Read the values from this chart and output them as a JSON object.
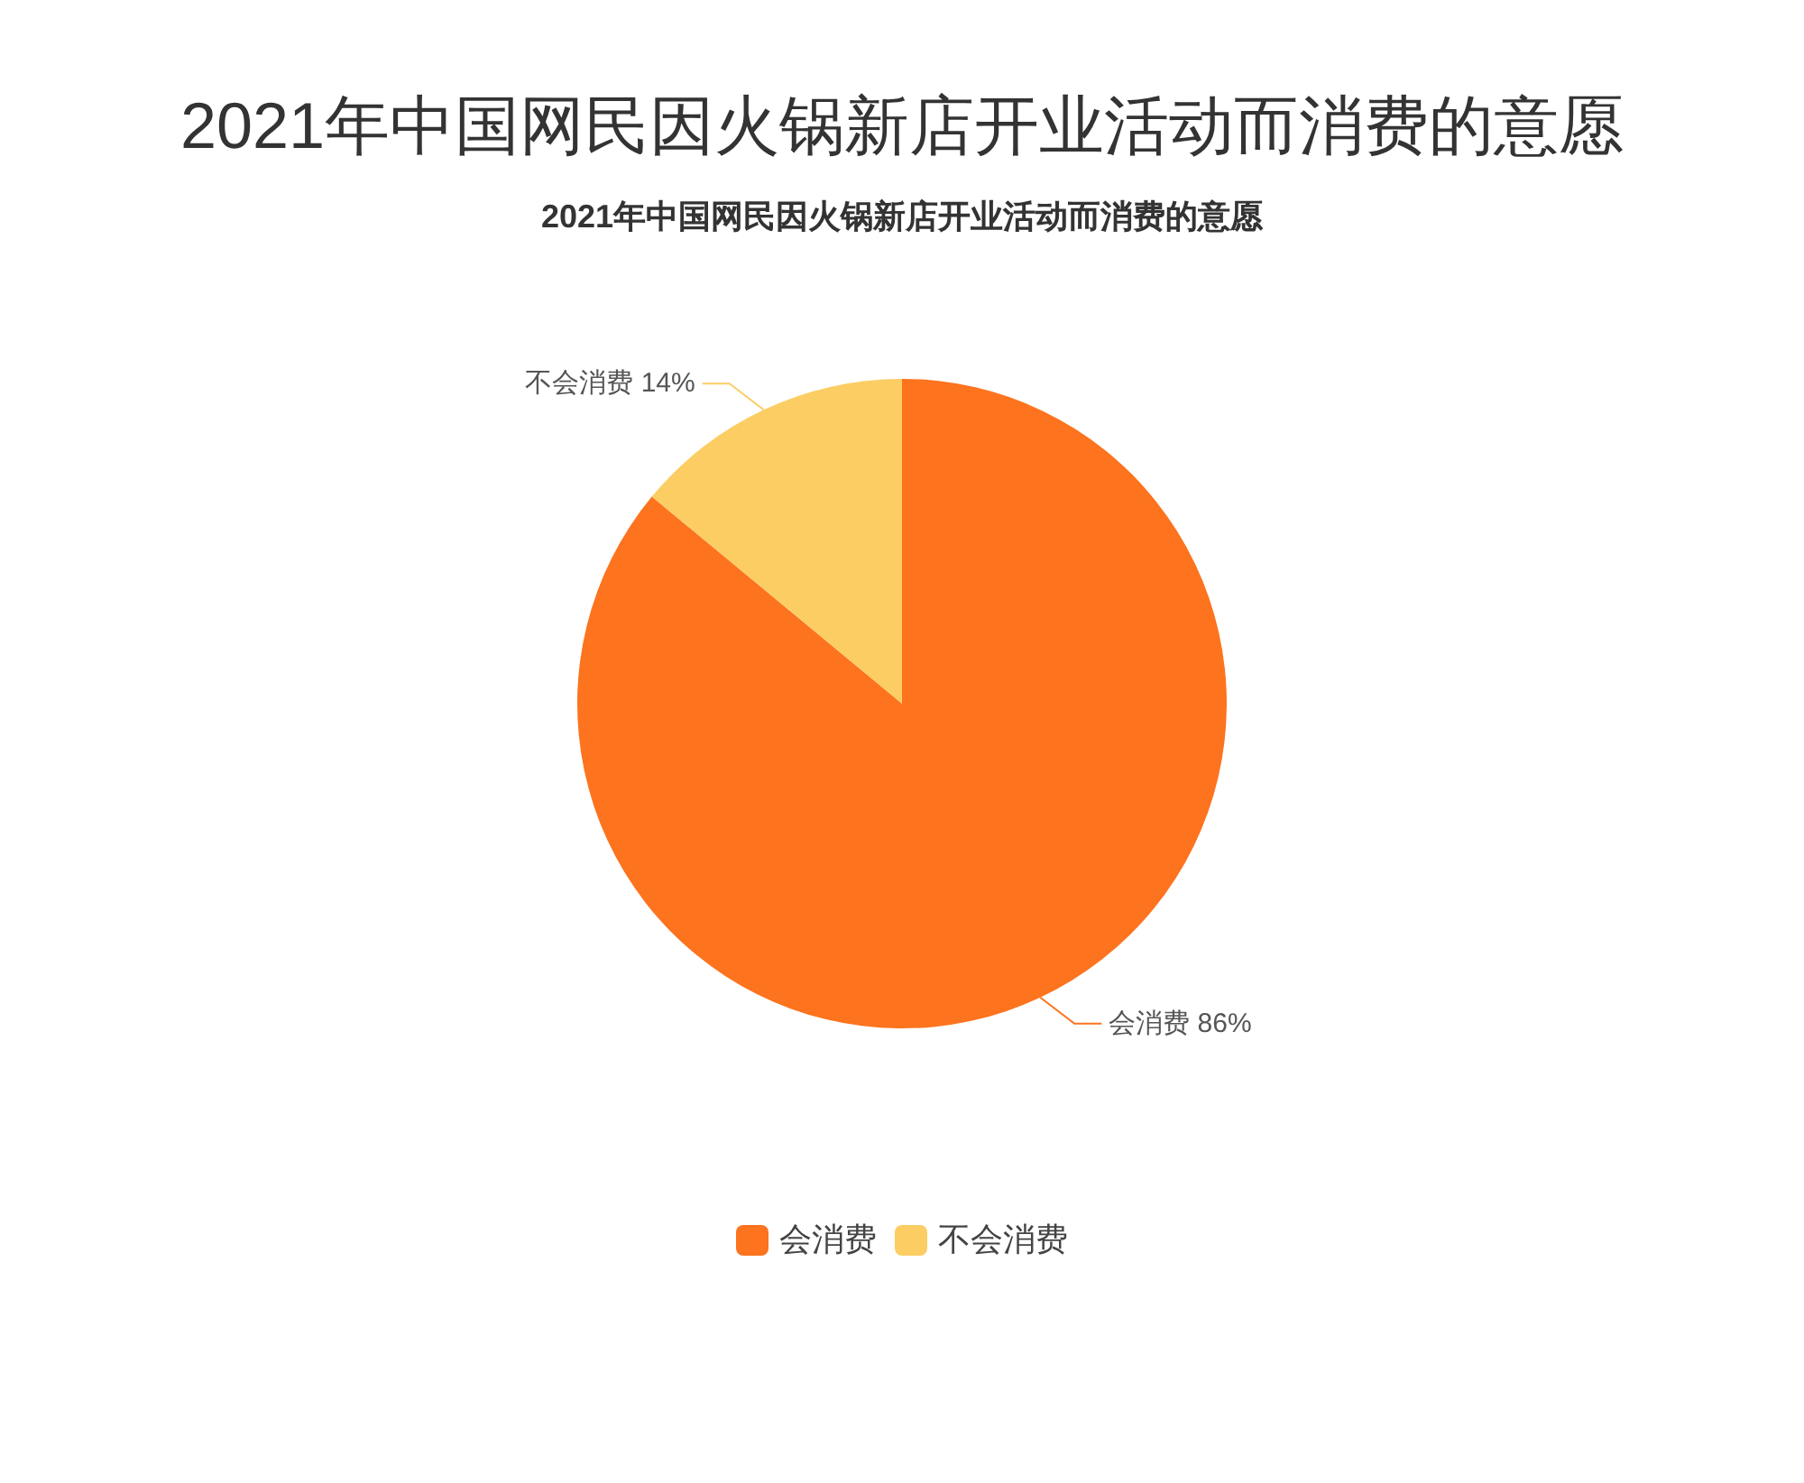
{
  "chart_data": {
    "type": "pie",
    "title": "2021年中国网民因火锅新店开业活动而消费的意愿",
    "subtitle": "2021年中国网民因火锅新店开业活动而消费的意愿",
    "categories": [
      "会消费",
      "不会消费"
    ],
    "values": [
      86,
      14
    ],
    "colors": [
      "#fd731e",
      "#fccd63"
    ],
    "value_labels": [
      "会消费 86%",
      "不会消费 14%"
    ],
    "legend": "bottom"
  }
}
